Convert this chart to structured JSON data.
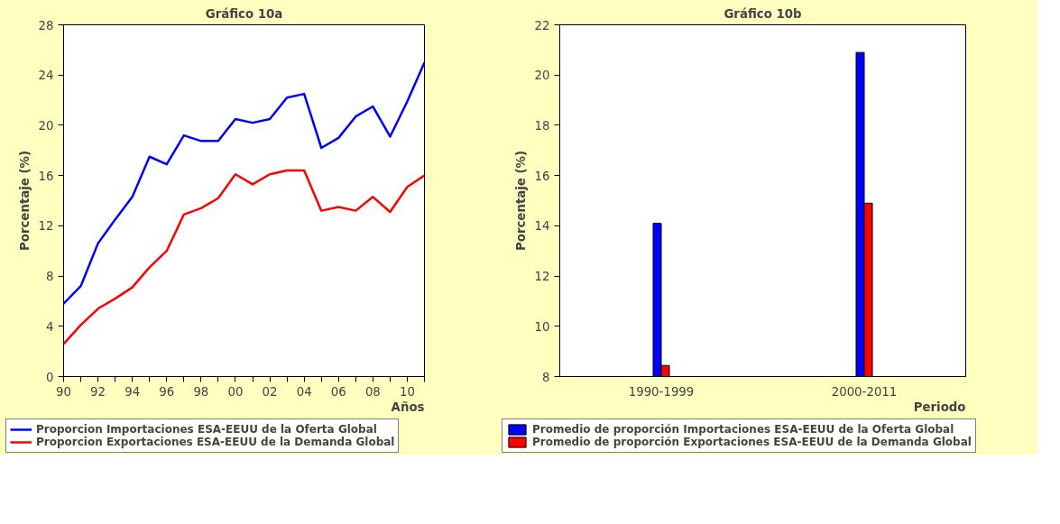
{
  "chart_data": [
    {
      "type": "line",
      "title": "Gráfico 10a",
      "xlabel": "Años",
      "ylabel": "Porcentaje (%)",
      "x": [
        1990,
        1991,
        1992,
        1993,
        1994,
        1995,
        1996,
        1997,
        1998,
        1999,
        2000,
        2001,
        2002,
        2003,
        2004,
        2005,
        2006,
        2007,
        2008,
        2009,
        2010,
        2011
      ],
      "series": [
        {
          "name": "Proporcion Importaciones ESA-EEUU de la Oferta Global",
          "color": "#0000ff",
          "values": [
            5.8,
            7.2,
            10.6,
            12.5,
            14.3,
            17.5,
            16.9,
            19.2,
            18.75,
            18.75,
            20.5,
            20.2,
            20.5,
            22.2,
            22.5,
            18.2,
            19.0,
            20.7,
            21.5,
            19.1,
            21.9,
            25.0
          ]
        },
        {
          "name": "Proporcion Exportaciones ESA-EEUU de la Demanda Global",
          "color": "#ff0000",
          "values": [
            2.6,
            4.1,
            5.4,
            6.2,
            7.1,
            8.7,
            10.0,
            12.9,
            13.4,
            14.2,
            16.1,
            15.3,
            16.1,
            16.4,
            16.4,
            13.2,
            13.5,
            13.2,
            14.3,
            13.1,
            15.1,
            16.0
          ]
        }
      ],
      "xlim": [
        1990,
        2011
      ],
      "xticks": [
        {
          "value": 1990,
          "label": "90"
        },
        {
          "value": 1991,
          "label": null
        },
        {
          "value": 1992,
          "label": "92"
        },
        {
          "value": 1993,
          "label": null
        },
        {
          "value": 1994,
          "label": "94"
        },
        {
          "value": 1995,
          "label": null
        },
        {
          "value": 1996,
          "label": "96"
        },
        {
          "value": 1997,
          "label": null
        },
        {
          "value": 1998,
          "label": "98"
        },
        {
          "value": 1999,
          "label": null
        },
        {
          "value": 2000,
          "label": "00"
        },
        {
          "value": 2001,
          "label": null
        },
        {
          "value": 2002,
          "label": "02"
        },
        {
          "value": 2003,
          "label": null
        },
        {
          "value": 2004,
          "label": "04"
        },
        {
          "value": 2005,
          "label": null
        },
        {
          "value": 2006,
          "label": "06"
        },
        {
          "value": 2007,
          "label": null
        },
        {
          "value": 2008,
          "label": "08"
        },
        {
          "value": 2009,
          "label": null
        },
        {
          "value": 2010,
          "label": "10"
        },
        {
          "value": 2011,
          "label": null
        }
      ],
      "ylim": [
        0,
        28
      ],
      "yticks": [
        0,
        4,
        8,
        12,
        16,
        20,
        24,
        28
      ],
      "grid": false,
      "legend": "bottom",
      "line_style": "solid"
    },
    {
      "type": "bar",
      "title": "Gráfico 10b",
      "xlabel": "Periodo",
      "ylabel": "Porcentaje (%)",
      "categories": [
        "1990-1999",
        "2000-2011"
      ],
      "series": [
        {
          "name": "Promedio de proporción Importaciones ESA-EEUU de la Oferta Global",
          "color": "#0000ff",
          "values": [
            14.1,
            20.9
          ]
        },
        {
          "name": "Promedio de proporción Exportaciones ESA-EEUU de la Demanda Global",
          "color": "#ff0000",
          "values": [
            8.44,
            14.9
          ]
        }
      ],
      "ylim": [
        8,
        22
      ],
      "yticks": [
        8,
        10,
        12,
        14,
        16,
        18,
        20,
        22
      ],
      "grid": false,
      "legend": "bottom"
    }
  ]
}
